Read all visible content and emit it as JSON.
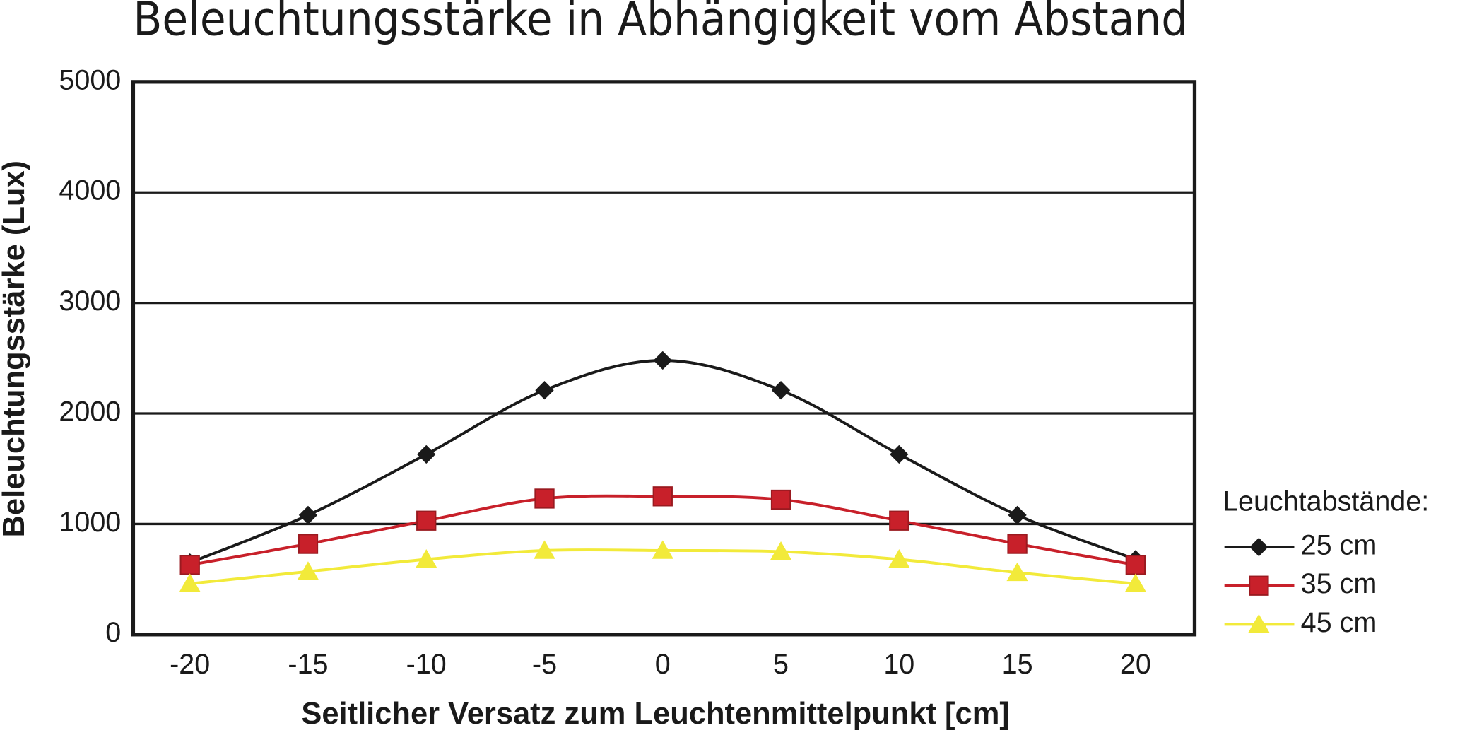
{
  "chart_data": {
    "type": "line",
    "title": "Beleuchtungsstärke in Abhängigkeit vom Abstand",
    "x_label": "Seitlicher Versatz zum Leuchtenmittelpunkt [cm]",
    "y_label": "Beleuchtungsstärke (Lux)",
    "legend_title": "Leuchtabstände:",
    "legend_position": "right",
    "grid": true,
    "x": [
      -20,
      -15,
      -10,
      -5,
      0,
      5,
      10,
      15,
      20
    ],
    "xlim": [
      -22.4,
      22.5
    ],
    "xticks": [
      -20,
      -15,
      -10,
      -5,
      0,
      5,
      10,
      15,
      20
    ],
    "ylim": [
      0,
      5000
    ],
    "yticks": [
      0,
      1000,
      2000,
      3000,
      4000,
      5000
    ],
    "series": [
      {
        "name": "25 cm",
        "color": "#1a1a1a",
        "marker": "diamond",
        "values": [
          650,
          1080,
          1630,
          2210,
          2480,
          2210,
          1630,
          1080,
          680
        ]
      },
      {
        "name": "35 cm",
        "color": "#c8202a",
        "marker": "square",
        "values": [
          630,
          820,
          1030,
          1230,
          1250,
          1220,
          1030,
          820,
          630
        ]
      },
      {
        "name": "45 cm",
        "color": "#f2ea3a",
        "marker": "triangle",
        "values": [
          460,
          570,
          680,
          760,
          760,
          750,
          680,
          560,
          460
        ]
      }
    ]
  }
}
